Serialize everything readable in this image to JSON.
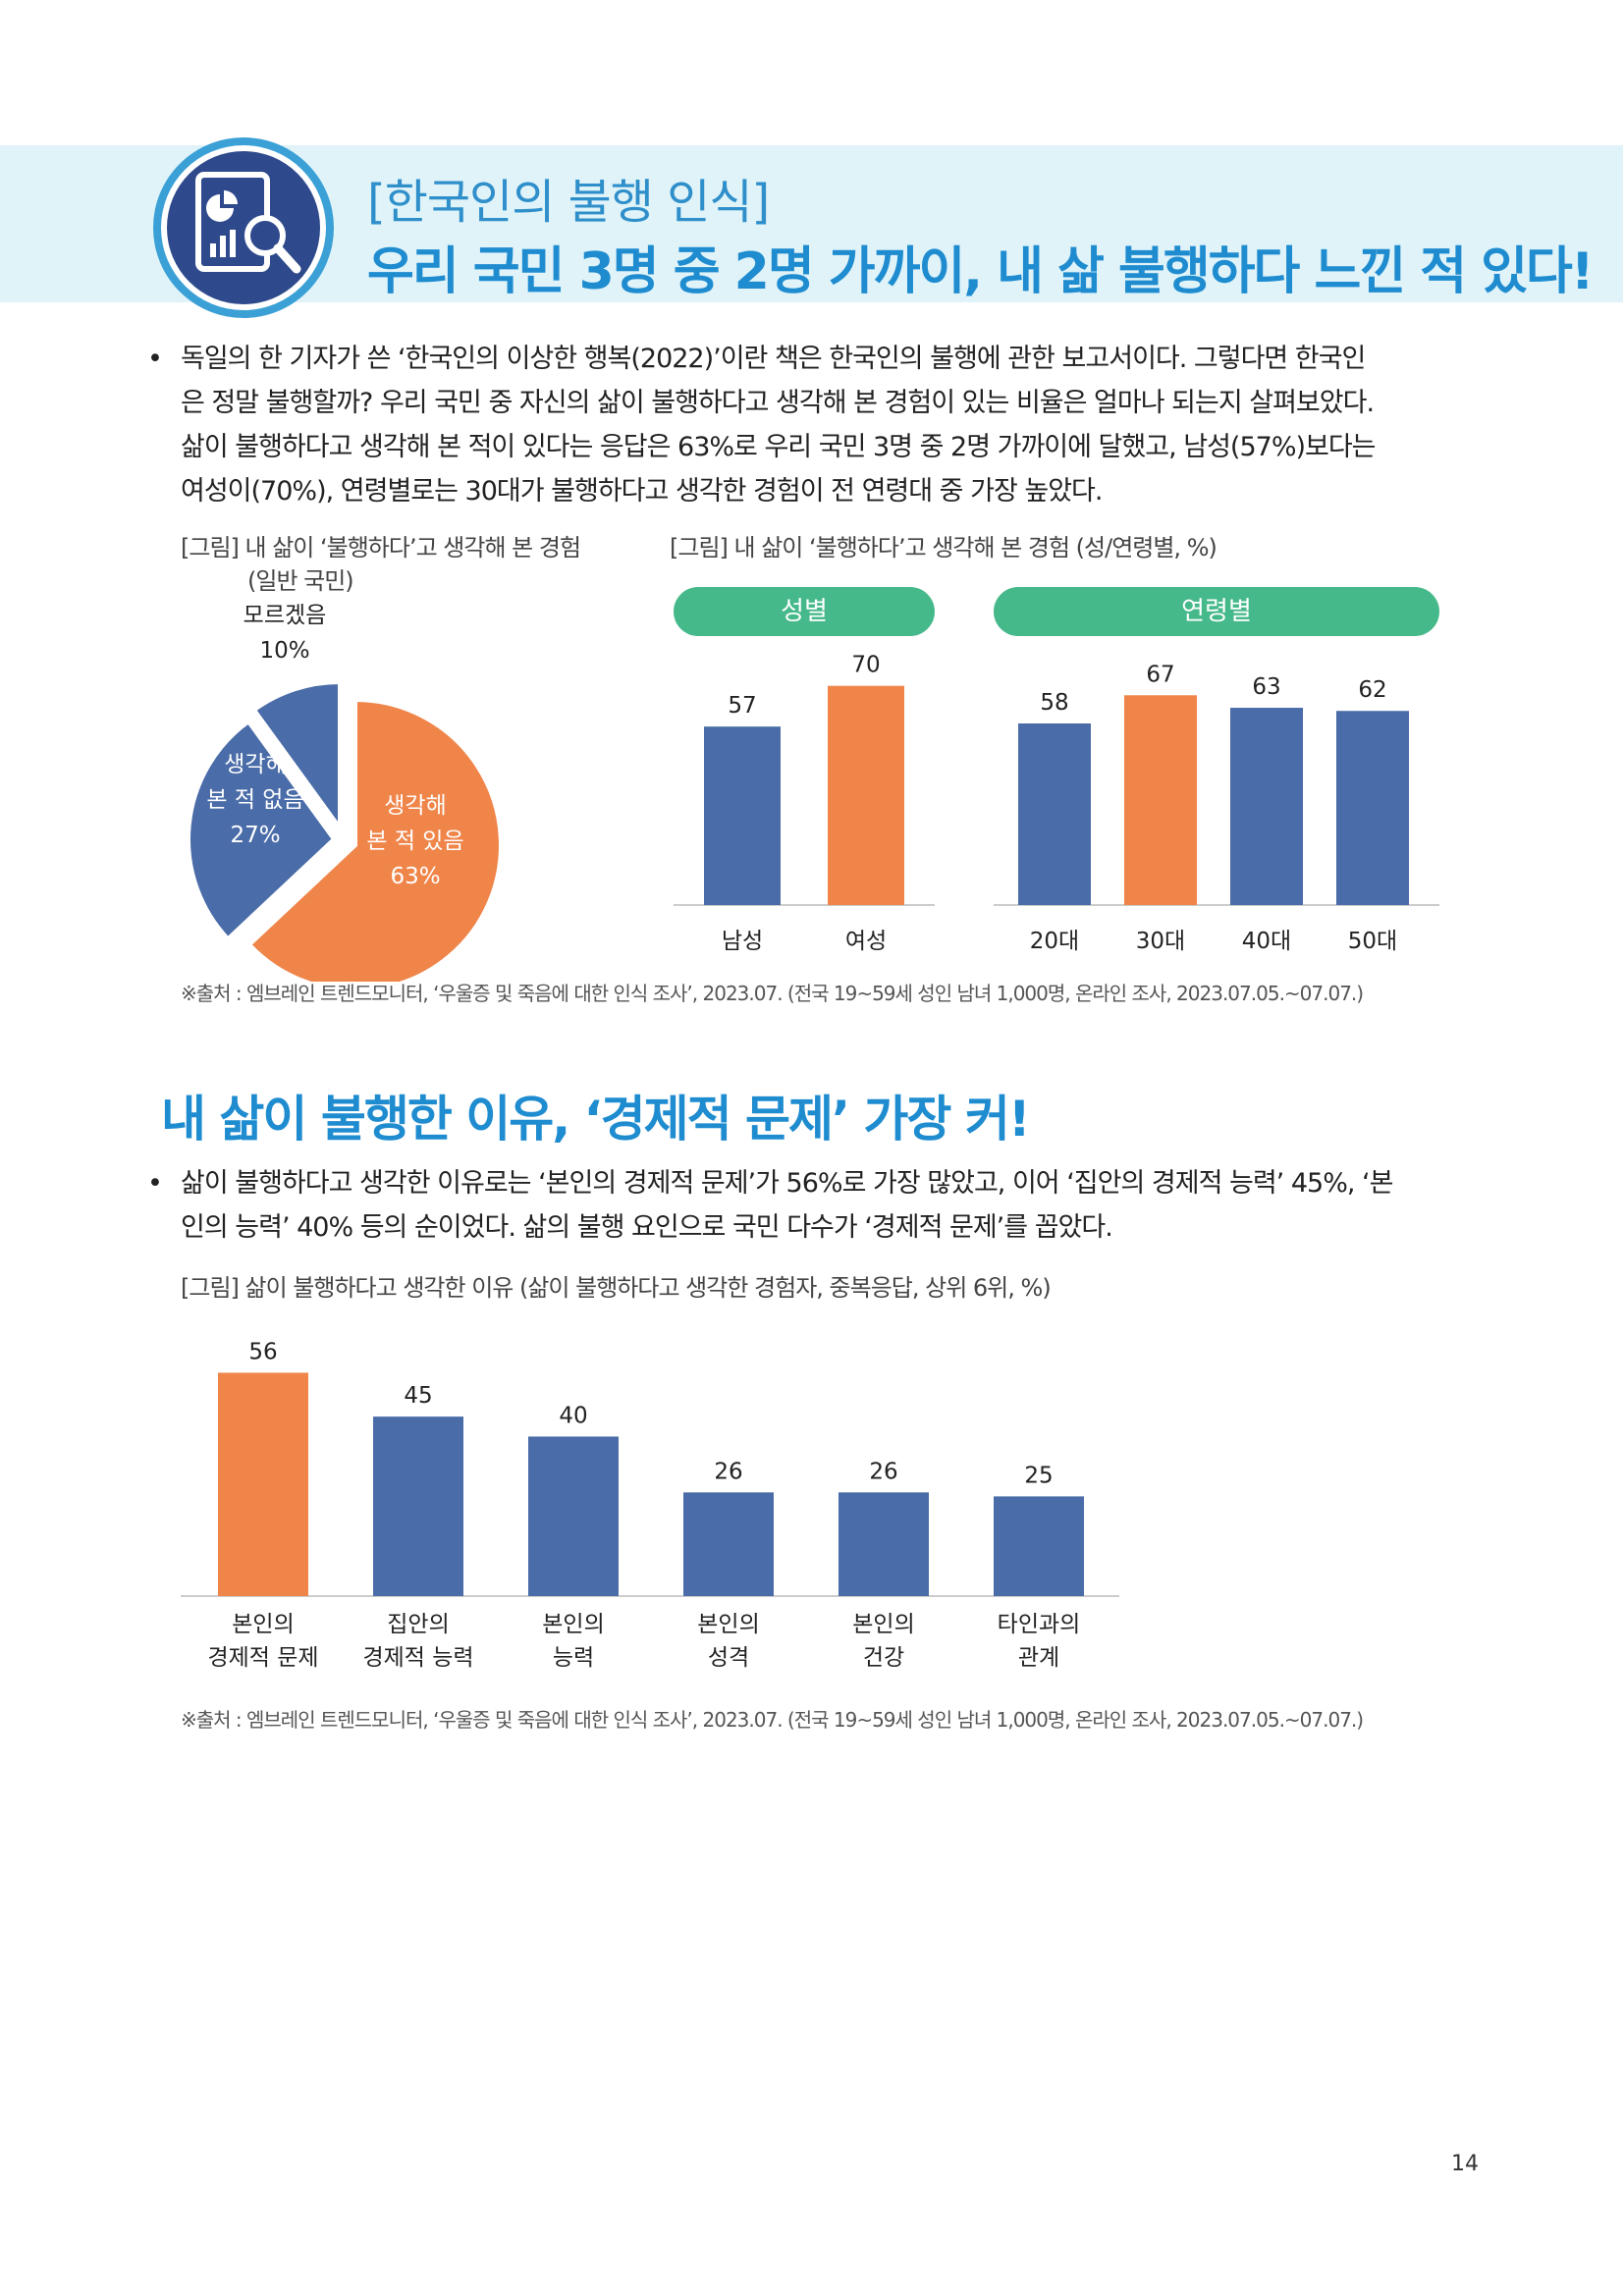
{
  "header": {
    "bracket_title": "[한국인의 불행 인식]",
    "main_title": "우리 국민 3명 중 2명 가까이, 내 삶 불행하다 느낀 적 있다!",
    "logo_icon": "report-magnifier-icon"
  },
  "paragraph1": {
    "bullet": "•",
    "lines": [
      "독일의 한 기자가 쓴 ‘한국인의 이상한 행복(2022)’이란 책은 한국인의 불행에 관한 보고서이다. 그렇다면 한국인",
      "은 정말 불행할까? 우리 국민 중 자신의 삶이 불행하다고 생각해 본 경험이 있는 비율은 얼마나 되는지 살펴보았다.",
      "삶이 불행하다고 생각해 본 적이 있다는 응답은 63%로 우리 국민 3명 중 2명 가까이에 달했고, 남성(57%)보다는",
      "여성이(70%), 연령별로는 30대가 불행하다고 생각한 경험이 전 연령대 중 가장 높았다."
    ]
  },
  "figure1": {
    "caption_line1": "[그림] 내 삶이 ‘불행하다’고 생각해 본 경험",
    "caption_line2": "(일반 국민)"
  },
  "figure2": {
    "caption": "[그림] 내 삶이 ‘불행하다’고 생각해 본 경험 (성/연령별, %)",
    "pill_gender": "성별",
    "pill_age": "연령별"
  },
  "source1": "※출처 : 엠브레인 트렌드모니터, ‘우울증 및 죽음에 대한 인식 조사’, 2023.07. (전국 19~59세 성인 남녀 1,000명, 온라인 조사, 2023.07.05.~07.07.)",
  "section2": {
    "title": "내 삶이 불행한 이유, ‘경제적 문제’ 가장 커!"
  },
  "paragraph2": {
    "bullet": "•",
    "lines": [
      "삶이 불행하다고 생각한 이유로는 ‘본인의 경제적 문제’가 56%로 가장 많았고, 이어 ‘집안의 경제적 능력’ 45%, ‘본",
      "인의 능력’ 40% 등의 순이었다. 삶의 불행 요인으로 국민 다수가 ‘경제적 문제’를 꼽았다."
    ]
  },
  "figure3": {
    "caption": "[그림] 삶이 불행하다고 생각한 이유 (삶이 불행하다고 생각한 경험자, 중복응답, 상위 6위, %)"
  },
  "source2": "※출처 : 엠브레인 트렌드모니터, ‘우울증 및 죽음에 대한 인식 조사’, 2023.07. (전국 19~59세 성인 남녀 1,000명, 온라인 조사, 2023.07.05.~07.07.)",
  "page_number": "14",
  "colors": {
    "blue": "#4a6ca8",
    "orange": "#f0854a",
    "green": "#45b98a",
    "title_blue": "#1f8cd0"
  },
  "chart_data": [
    {
      "type": "pie",
      "slices": [
        {
          "label_lines": [
            "생각해",
            "본 적 있음",
            "63%"
          ],
          "value": 63,
          "color": "#f0854a"
        },
        {
          "label_lines": [
            "생각해",
            "본 적 없음",
            "27%"
          ],
          "value": 27,
          "color": "#4a6ca8"
        },
        {
          "label_lines": [
            "모르겠음",
            "10%"
          ],
          "value": 10,
          "color": "#4a6ca8"
        }
      ]
    },
    {
      "type": "bar",
      "categories": [
        "남성",
        "여성"
      ],
      "values": [
        57,
        70
      ],
      "highlight_index": 1
    },
    {
      "type": "bar",
      "categories": [
        "20대",
        "30대",
        "40대",
        "50대"
      ],
      "values": [
        58,
        67,
        63,
        62
      ],
      "highlight_index": 1
    },
    {
      "type": "bar",
      "categories": [
        [
          "본인의",
          "경제적 문제"
        ],
        [
          "집안의",
          "경제적 능력"
        ],
        [
          "본인의",
          "능력"
        ],
        [
          "본인의",
          "성격"
        ],
        [
          "본인의",
          "건강"
        ],
        [
          "타인과의",
          "관계"
        ]
      ],
      "values": [
        56,
        45,
        40,
        26,
        26,
        25
      ],
      "highlight_index": 0
    }
  ]
}
